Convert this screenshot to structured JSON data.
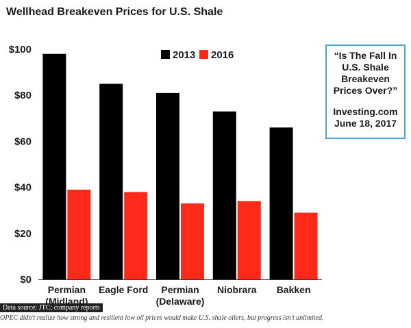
{
  "chart_data": {
    "type": "bar",
    "title": "Wellhead Breakeven Prices for U.S. Shale",
    "categories": [
      [
        "Permian",
        "(Midland)"
      ],
      [
        "Eagle Ford"
      ],
      [
        "Permian",
        "(Delaware)"
      ],
      [
        "Niobrara"
      ],
      [
        "Bakken"
      ]
    ],
    "series": [
      {
        "name": "2013",
        "color": "#000000",
        "values": [
          98,
          85,
          81,
          73,
          66
        ]
      },
      {
        "name": "2016",
        "color": "#ff2a1a",
        "values": [
          39,
          38,
          33,
          34,
          29
        ]
      }
    ],
    "ylim": [
      0,
      100
    ],
    "yticks": [
      0,
      20,
      40,
      60,
      80,
      100
    ],
    "ytick_labels": [
      "$0",
      "$20",
      "$40",
      "$60",
      "$80",
      "$100"
    ],
    "legend_position": "top-center"
  },
  "callout": {
    "quote": "“Is The Fall In U.S. Shale Breakeven Prices Over?”",
    "source": "Investing.com",
    "date": "June 18, 2017"
  },
  "footer": {
    "source_label": "Data source: JTC; company reports",
    "caption": "OPEC didn't realize how strong and resilient low oil prices would make U.S. shale oilers, but progress isn't unlimited."
  }
}
